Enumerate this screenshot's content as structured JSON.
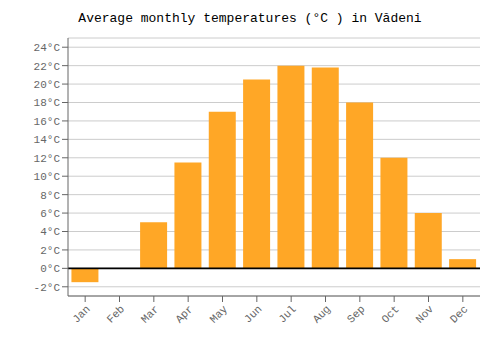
{
  "chart_data": {
    "type": "bar",
    "title": "Average monthly temperatures (°C ) in Vădeni",
    "categories": [
      "Jan",
      "Feb",
      "Mar",
      "Apr",
      "May",
      "Jun",
      "Jul",
      "Aug",
      "Sep",
      "Oct",
      "Nov",
      "Dec"
    ],
    "values": [
      -1.5,
      0,
      5,
      11.5,
      17,
      20.5,
      22,
      21.8,
      18,
      12,
      6,
      1
    ],
    "color": "#FFA726",
    "ylim": [
      -3,
      25
    ],
    "yticks": [
      {
        "value": -2,
        "label": "-2°C"
      },
      {
        "value": 0,
        "label": "0°C"
      },
      {
        "value": 2,
        "label": "2°C"
      },
      {
        "value": 4,
        "label": "4°C"
      },
      {
        "value": 6,
        "label": "6°C"
      },
      {
        "value": 8,
        "label": "8°C"
      },
      {
        "value": 10,
        "label": "10°C"
      },
      {
        "value": 12,
        "label": "12°C"
      },
      {
        "value": 14,
        "label": "14°C"
      },
      {
        "value": 16,
        "label": "16°C"
      },
      {
        "value": 18,
        "label": "18°C"
      },
      {
        "value": 20,
        "label": "20°C"
      },
      {
        "value": 22,
        "label": "22°C"
      },
      {
        "value": 24,
        "label": "24°C"
      }
    ],
    "grid": true
  }
}
